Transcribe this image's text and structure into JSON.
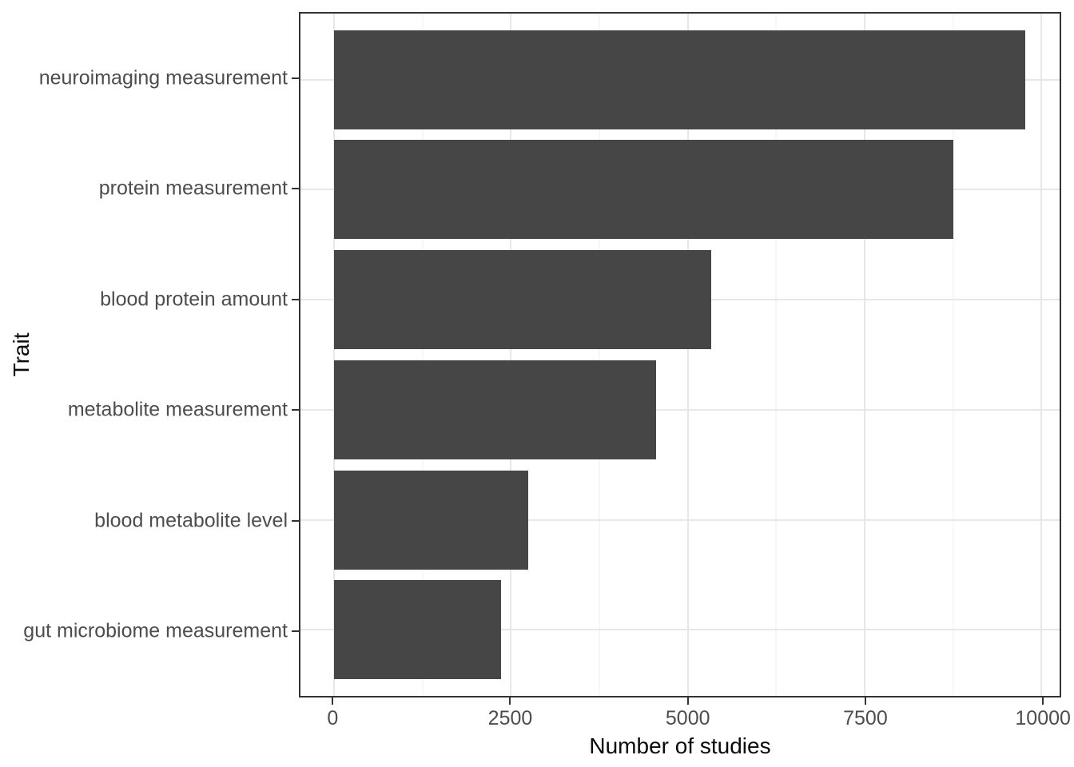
{
  "chart_data": {
    "type": "bar",
    "orientation": "horizontal",
    "title": "",
    "xlabel": "Number of studies",
    "ylabel": "Trait",
    "categories": [
      "neuroimaging measurement",
      "protein measurement",
      "blood protein amount",
      "metabolite measurement",
      "blood metabolite level",
      "gut microbiome measurement"
    ],
    "values": [
      9775,
      8755,
      5335,
      4555,
      2740,
      2360
    ],
    "xlim": [
      0,
      10000
    ],
    "x_major_ticks": [
      0,
      2500,
      5000,
      7500,
      10000
    ],
    "x_tick_labels": [
      "0",
      "2500",
      "5000",
      "7500",
      "10000"
    ],
    "x_minor_ticks": [
      1250,
      3750,
      6250,
      8750
    ],
    "bar_width_ratio": 0.9,
    "grid": "on",
    "legend": "none",
    "colors": {
      "bar_fill": "#464646",
      "grid_major": "#E7E7E7",
      "grid_minor": "#EFEFEF",
      "panel_border": "#333333",
      "tick_text": "#4D4D4D",
      "axis_title_text": "#0a0a0a",
      "background": "#FFFFFF"
    }
  }
}
